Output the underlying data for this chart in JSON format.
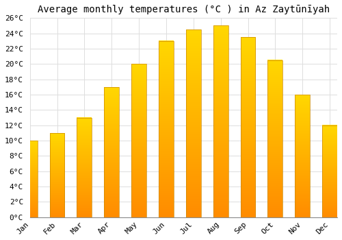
{
  "title": "Average monthly temperatures (°C ) in Az Zaytūnīyah",
  "months": [
    "Jan",
    "Feb",
    "Mar",
    "Apr",
    "May",
    "Jun",
    "Jul",
    "Aug",
    "Sep",
    "Oct",
    "Nov",
    "Dec"
  ],
  "values": [
    10.0,
    11.0,
    13.0,
    17.0,
    20.0,
    23.0,
    24.5,
    25.0,
    23.5,
    20.5,
    16.0,
    12.0
  ],
  "bar_color_top": "#FFD700",
  "bar_color_bottom": "#FFA500",
  "bar_edge_color": "#CC8800",
  "background_color": "#FFFFFF",
  "plot_bg_color": "#FFFFFF",
  "grid_color": "#DDDDDD",
  "ylim": [
    0,
    26
  ],
  "yticks": [
    0,
    2,
    4,
    6,
    8,
    10,
    12,
    14,
    16,
    18,
    20,
    22,
    24,
    26
  ],
  "ytick_labels": [
    "0°C",
    "2°C",
    "4°C",
    "6°C",
    "8°C",
    "10°C",
    "12°C",
    "14°C",
    "16°C",
    "18°C",
    "20°C",
    "22°C",
    "24°C",
    "26°C"
  ],
  "title_fontsize": 10,
  "tick_fontsize": 8,
  "font_family": "monospace",
  "bar_width": 0.55
}
